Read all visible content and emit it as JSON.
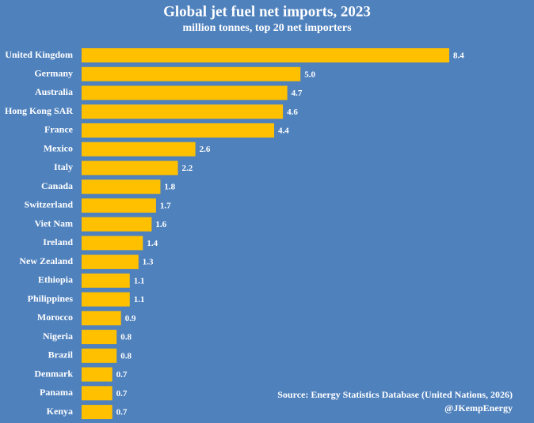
{
  "chart_data": {
    "type": "bar",
    "orientation": "horizontal",
    "title": "Global jet fuel net imports, 2023",
    "subtitle": "million tonnes, top 20 net importers",
    "categories": [
      "United Kingdom",
      "Germany",
      "Australia",
      "Hong Kong SAR",
      "France",
      "Mexico",
      "Italy",
      "Canada",
      "Switzerland",
      "Viet Nam",
      "Ireland",
      "New Zealand",
      "Ethiopia",
      "Philippines",
      "Morocco",
      "Nigeria",
      "Brazil",
      "Denmark",
      "Panama",
      "Kenya"
    ],
    "values": [
      8.4,
      5,
      4.7,
      4.6,
      4.4,
      2.6,
      2.2,
      1.8,
      1.7,
      1.6,
      1.4,
      1.3,
      1.1,
      1.1,
      0.9,
      0.8,
      0.8,
      0.7,
      0.7,
      0.7
    ],
    "value_labels": [
      "8.4",
      "5.0",
      "4.7",
      "4.6",
      "4.4",
      "2.6",
      "2.2",
      "1.8",
      "1.7",
      "1.6",
      "1.4",
      "1.3",
      "1.1",
      "1.1",
      "0.9",
      "0.8",
      "0.8",
      "0.7",
      "0.7",
      "0.7"
    ],
    "color": "#ffc000",
    "source": "Source: Energy Statistics Database (United Nations, 2026)",
    "credit": "@JKempEnergy"
  }
}
